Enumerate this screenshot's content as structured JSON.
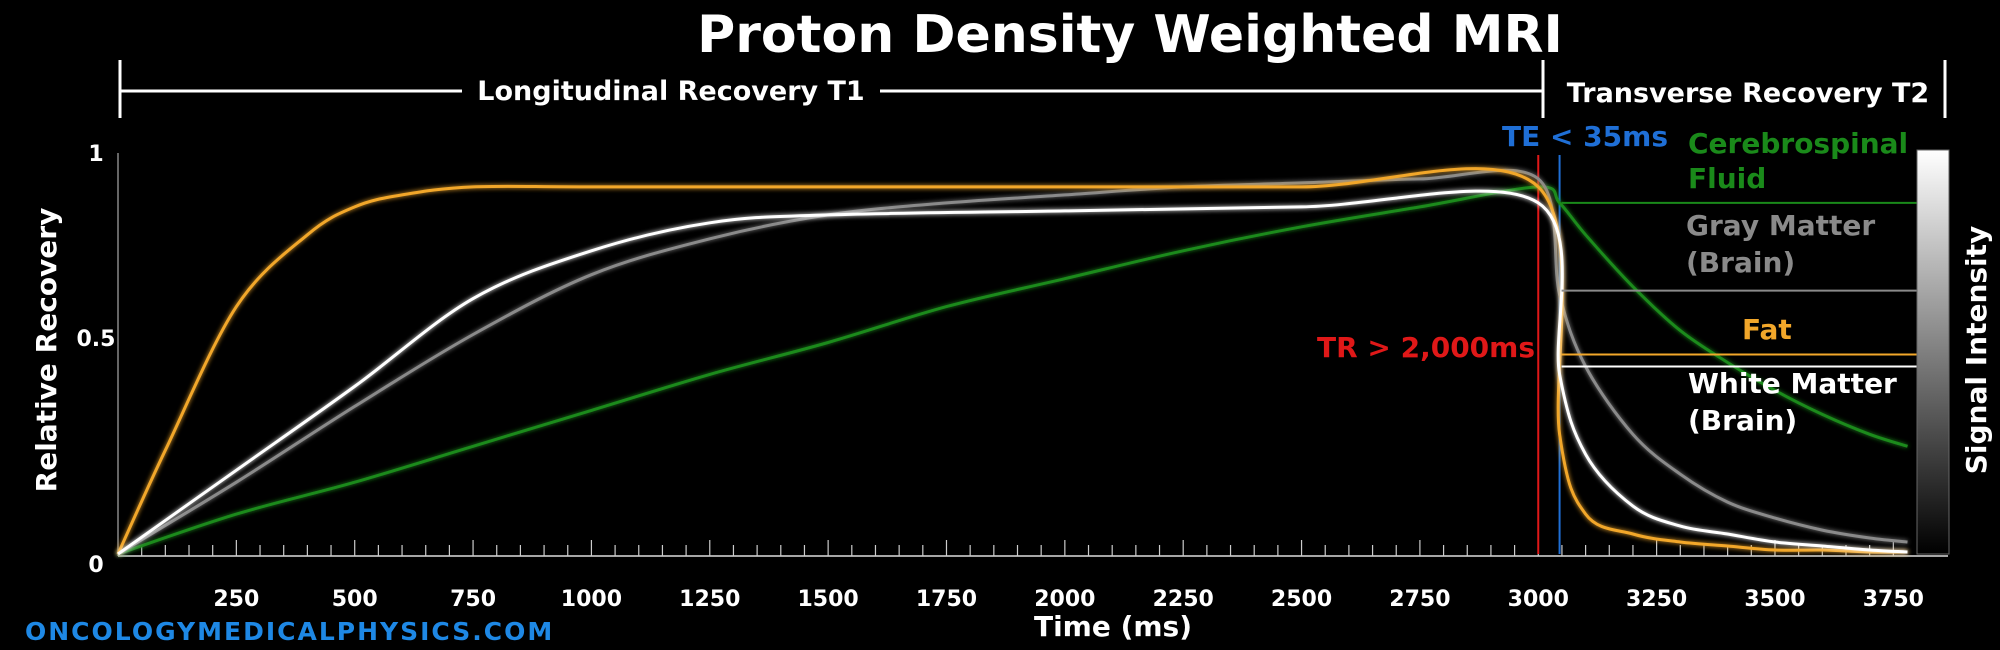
{
  "colors": {
    "csf": "#1a8a1a",
    "gray_matter": "#8a8a8a",
    "fat": "#f2a72a",
    "white_matter": "#ffffff",
    "tr": "#e01818",
    "te": "#1f6fd6",
    "brand": "#1e88e5"
  },
  "chart_data": {
    "type": "line",
    "title": "Proton Density Weighted MRI",
    "xlabel": "Time (ms)",
    "ylabel": "Relative Recovery",
    "y2label": "Signal Intensity",
    "xlim": [
      0,
      3800
    ],
    "ylim": [
      0,
      1
    ],
    "xticks": [
      "250",
      "500",
      "750",
      "1000",
      "1250",
      "1500",
      "1750",
      "2000",
      "2250",
      "2500",
      "2750",
      "3000",
      "3250",
      "3500",
      "3750"
    ],
    "yticks": [
      "0",
      "0.5",
      "1"
    ],
    "sections": {
      "t1": "Longitudinal Recovery T1",
      "t2": "Transverse Recovery T2"
    },
    "annotations": {
      "tr": "TR > 2,000ms",
      "te": "TE < 35ms",
      "tr_ms": 3000,
      "te_ms": 3045
    },
    "series": [
      {
        "key": "csf",
        "label_lines": [
          "Cerebrospinal",
          "Fluid"
        ],
        "x": [
          0,
          250,
          500,
          750,
          1000,
          1250,
          1500,
          1750,
          2000,
          2250,
          2500,
          2750,
          3000,
          3045,
          3100,
          3200,
          3300,
          3400,
          3500,
          3600,
          3700,
          3780
        ],
        "y": [
          0,
          0.1,
          0.18,
          0.27,
          0.36,
          0.45,
          0.53,
          0.62,
          0.69,
          0.76,
          0.82,
          0.87,
          0.92,
          0.88,
          0.8,
          0.67,
          0.56,
          0.48,
          0.41,
          0.35,
          0.3,
          0.27
        ],
        "signal_level": 0.88
      },
      {
        "key": "gray_matter",
        "label_lines": [
          "Gray Matter",
          "(Brain)"
        ],
        "x": [
          0,
          250,
          500,
          750,
          1000,
          1250,
          1500,
          1750,
          2000,
          2250,
          2500,
          2750,
          3000,
          3045,
          3100,
          3200,
          3300,
          3400,
          3500,
          3600,
          3700,
          3780
        ],
        "y": [
          0,
          0.18,
          0.37,
          0.55,
          0.7,
          0.79,
          0.85,
          0.88,
          0.9,
          0.92,
          0.93,
          0.94,
          0.94,
          0.65,
          0.47,
          0.3,
          0.2,
          0.13,
          0.09,
          0.06,
          0.04,
          0.03
        ],
        "signal_level": 0.66
      },
      {
        "key": "fat",
        "label_lines": [
          "Fat"
        ],
        "x": [
          0,
          100,
          250,
          400,
          500,
          600,
          750,
          1000,
          1500,
          2000,
          2500,
          3000,
          3045,
          3100,
          3200,
          3300,
          3400,
          3500,
          3600,
          3700,
          3780
        ],
        "y": [
          0,
          0.26,
          0.62,
          0.8,
          0.87,
          0.9,
          0.92,
          0.92,
          0.92,
          0.92,
          0.92,
          0.92,
          0.3,
          0.1,
          0.05,
          0.03,
          0.02,
          0.01,
          0.01,
          0.005,
          0.005
        ],
        "signal_level": 0.5
      },
      {
        "key": "white_matter",
        "label_lines": [
          "White Matter",
          "(Brain)"
        ],
        "x": [
          0,
          250,
          500,
          750,
          1000,
          1250,
          1500,
          2000,
          2500,
          3000,
          3045,
          3100,
          3200,
          3300,
          3400,
          3500,
          3600,
          3700,
          3780
        ],
        "y": [
          0,
          0.21,
          0.42,
          0.64,
          0.76,
          0.83,
          0.85,
          0.86,
          0.87,
          0.88,
          0.45,
          0.25,
          0.12,
          0.07,
          0.05,
          0.03,
          0.02,
          0.01,
          0.005
        ],
        "signal_level": 0.47
      }
    ]
  },
  "footer": {
    "brand": "ONCOLOGYMEDICALPHYSICS.COM"
  }
}
